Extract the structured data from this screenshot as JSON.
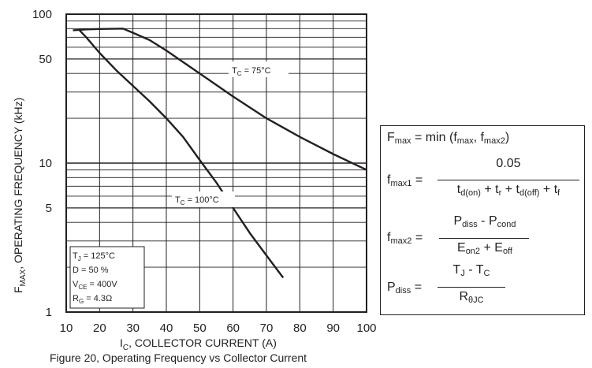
{
  "chart_data": {
    "type": "line",
    "title": "",
    "xlabel": "I",
    "xlabel_sub": "C",
    "xlabel_rest": ", COLLECTOR CURRENT (A)",
    "ylabel": "F",
    "ylabel_sub": "MAX",
    "ylabel_rest": ", OPERATING FREQUENCY (kHz)",
    "xlim": [
      10,
      100
    ],
    "ylim": [
      1,
      100
    ],
    "yscale": "log",
    "grid": true,
    "x_ticks": [
      "10",
      "20",
      "30",
      "40",
      "50",
      "60",
      "70",
      "80",
      "90",
      "100"
    ],
    "y_ticks": [
      {
        "value": 100,
        "label": "100"
      },
      {
        "value": 50,
        "label": "50"
      },
      {
        "value": 10,
        "label": "10"
      },
      {
        "value": 5,
        "label": "5"
      },
      {
        "value": 1,
        "label": "1"
      }
    ],
    "series": [
      {
        "name": "T_C = 75°C",
        "x": [
          12,
          16,
          20,
          27,
          30,
          35,
          40,
          50,
          60,
          70,
          80,
          90,
          100
        ],
        "y": [
          78,
          79,
          79.5,
          80,
          75,
          67,
          57,
          40,
          28,
          20,
          15,
          11.5,
          9
        ]
      },
      {
        "name": "T_C = 100°C",
        "x": [
          14,
          16,
          20,
          25,
          30,
          35,
          40,
          45,
          50,
          55,
          60,
          65,
          70,
          75
        ],
        "y": [
          78,
          70,
          55,
          42,
          33,
          26,
          20,
          15,
          10.5,
          7.4,
          5,
          3.4,
          2.4,
          1.7
        ]
      }
    ],
    "annotations": [
      {
        "text": "T",
        "sub": "C",
        "rest": " = 75°C"
      },
      {
        "text": "T",
        "sub": "C",
        "rest": " = 100°C"
      }
    ],
    "conditions": [
      {
        "label": "T",
        "sub": "J",
        "rest": " = 125°C"
      },
      {
        "label": "D = 50 %",
        "sub": "",
        "rest": ""
      },
      {
        "label": "V",
        "sub": "CE",
        "rest": " = 400V"
      },
      {
        "label": "R",
        "sub": "G",
        "rest": " = 4.3Ω"
      }
    ]
  },
  "formulas": {
    "fmax": {
      "lhs": "F",
      "lhs_sub": "max",
      "rhs_a": " = min (f",
      "rhs_sub1": "max",
      "rhs_b": ", f",
      "rhs_sub2": "max2",
      "rhs_c": ")"
    },
    "fmax1": {
      "lhs": "f",
      "lhs_sub": "max1",
      "eq": "=",
      "numerator": "0.05",
      "den": [
        {
          "t": "t",
          "s": "d(on)"
        },
        {
          "t": " + t",
          "s": "r"
        },
        {
          "t": " + t",
          "s": "d(off)"
        },
        {
          "t": " + t",
          "s": "f"
        }
      ]
    },
    "fmax2": {
      "lhs": "f",
      "lhs_sub": "max2",
      "eq": "=",
      "num": [
        {
          "t": "P",
          "s": "diss"
        },
        {
          "t": " - P",
          "s": "cond"
        }
      ],
      "den": [
        {
          "t": "E",
          "s": "on2"
        },
        {
          "t": " + E",
          "s": "off"
        }
      ]
    },
    "pdiss": {
      "lhs": "P",
      "lhs_sub": "diss",
      "eq": "=",
      "num": [
        {
          "t": "T",
          "s": "J"
        },
        {
          "t": " - T",
          "s": "C"
        }
      ],
      "den": [
        {
          "t": "R",
          "s": "θJC"
        }
      ]
    }
  },
  "caption": "Figure 20, Operating  Frequency  vs Collector  Current",
  "colors": {
    "ink": "#231f20",
    "background": "#ffffff"
  }
}
